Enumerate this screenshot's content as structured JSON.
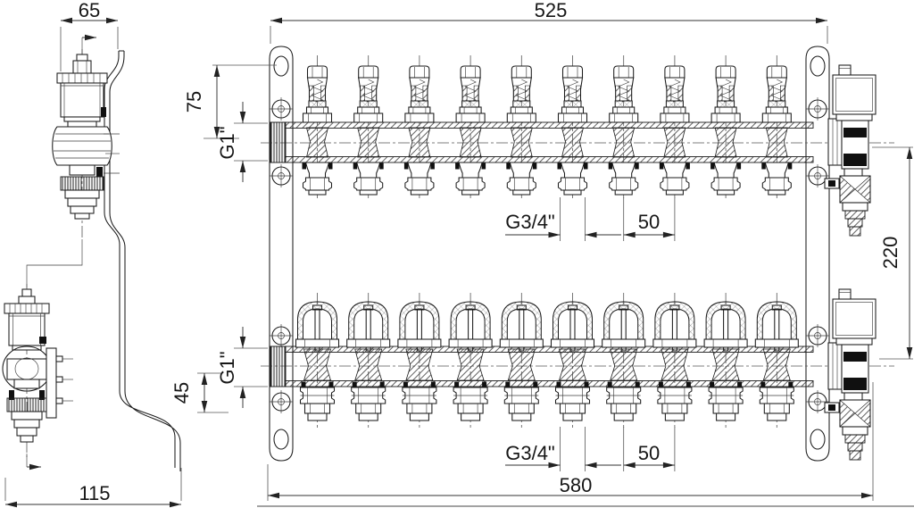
{
  "drawing": {
    "kind": "manifold-dimension-drawing",
    "outlet_count": 10,
    "colors": {
      "line": "#1b1b1b",
      "dimension": "#333333",
      "seal": "#101010",
      "background": "#ffffff"
    },
    "dims": {
      "side_top_width": "65",
      "side_bottom_depth": "115",
      "pitch_width": "525",
      "overall_width": "580",
      "top_offset": "75",
      "supply_thread": "G1\"",
      "outlet_thread_top": "G3/4\"",
      "outlet_pitch_top": "50",
      "axis_spacing": "220",
      "bottom_offset": "45",
      "return_thread": "G1\"",
      "outlet_thread_bottom": "G3/4\"",
      "outlet_pitch_bottom": "50"
    }
  }
}
